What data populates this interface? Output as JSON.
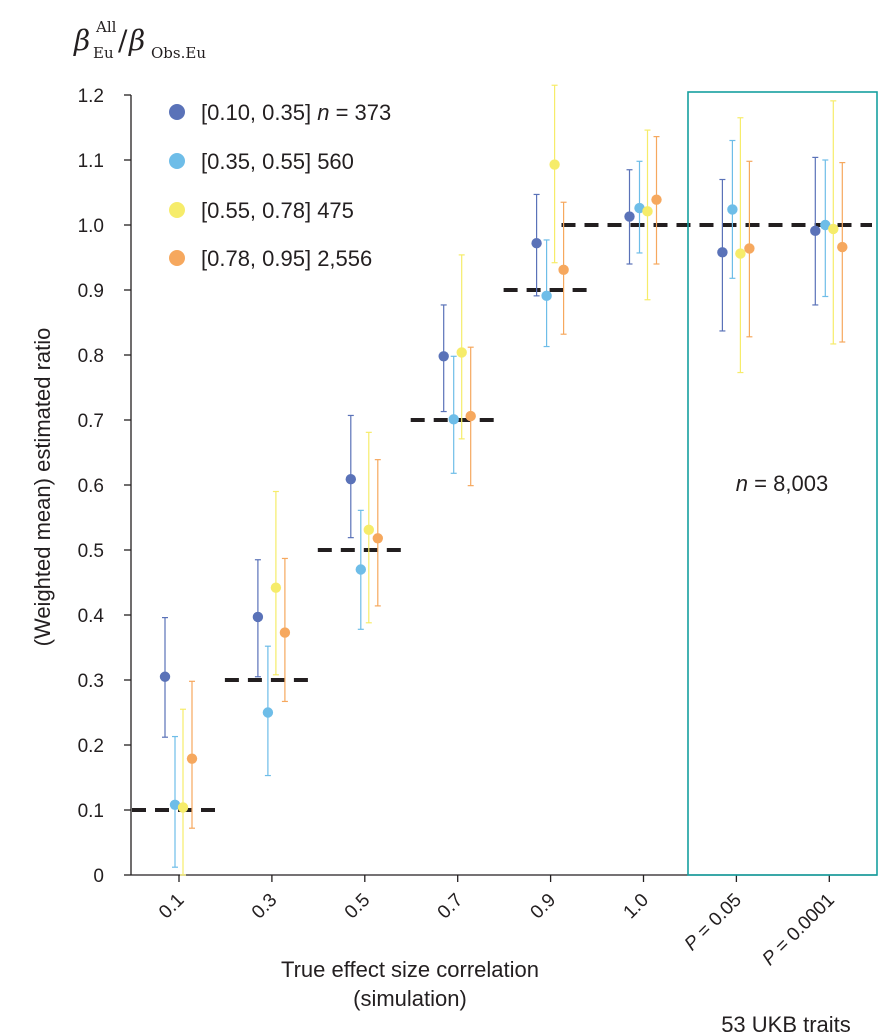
{
  "chart_data": {
    "type": "scatter",
    "subtype": "point-with-error-bars",
    "corner_title": {
      "beta1": "β",
      "sup1": "All",
      "sub1": "Eu",
      "slash": "/",
      "beta2": "β",
      "sub2": "Obs.Eu"
    },
    "ylabel": "(Weighted mean) estimated ratio",
    "xlabel_line1": "True effect size correlation",
    "xlabel_line2": "(simulation)",
    "ylim": [
      0,
      1.2
    ],
    "yticks": [
      "0",
      "0.1",
      "0.2",
      "0.3",
      "0.4",
      "0.5",
      "0.6",
      "0.7",
      "0.8",
      "0.9",
      "1.0",
      "1.1",
      "1.2"
    ],
    "categories": [
      "0.1",
      "0.3",
      "0.5",
      "0.7",
      "0.9",
      "1.0",
      "P = 0.05",
      "P = 0.0001"
    ],
    "true_values": [
      0.1,
      0.3,
      0.5,
      0.7,
      0.9,
      1.0,
      1.0,
      1.0
    ],
    "series": [
      {
        "name": "[0.10, 0.35]",
        "n_italic": "n",
        "n_rest": " = 373",
        "color": "#5a72b8",
        "means": [
          0.305,
          0.397,
          0.609,
          0.798,
          0.972,
          1.013,
          0.958,
          0.991
        ],
        "lower": [
          0.212,
          0.305,
          0.519,
          0.713,
          0.891,
          0.94,
          0.837,
          0.877
        ],
        "upper": [
          0.396,
          0.485,
          0.707,
          0.877,
          1.047,
          1.085,
          1.07,
          1.104
        ]
      },
      {
        "name": "[0.35, 0.55] 560",
        "color": "#6ebde8",
        "means": [
          0.108,
          0.25,
          0.47,
          0.701,
          0.891,
          1.026,
          1.024,
          1.0
        ],
        "lower": [
          0.012,
          0.153,
          0.378,
          0.618,
          0.813,
          0.957,
          0.918,
          0.89
        ],
        "upper": [
          0.213,
          0.352,
          0.561,
          0.798,
          0.977,
          1.098,
          1.13,
          1.1
        ]
      },
      {
        "name": "[0.55, 0.78] 475",
        "color": "#f6ec6a",
        "means": [
          0.104,
          0.442,
          0.531,
          0.804,
          1.093,
          1.021,
          0.956,
          0.994
        ],
        "lower": [
          0.0,
          0.308,
          0.388,
          0.671,
          0.942,
          0.885,
          0.773,
          0.817
        ],
        "upper": [
          0.255,
          0.59,
          0.681,
          0.954,
          1.215,
          1.146,
          1.165,
          1.191
        ]
      },
      {
        "name": "[0.78, 0.95] 2,556",
        "color": "#f6a85e",
        "means": [
          0.179,
          0.373,
          0.518,
          0.706,
          0.931,
          1.039,
          0.964,
          0.966
        ],
        "lower": [
          0.072,
          0.267,
          0.414,
          0.599,
          0.832,
          0.94,
          0.828,
          0.82
        ],
        "upper": [
          0.298,
          0.487,
          0.639,
          0.812,
          1.035,
          1.136,
          1.098,
          1.096
        ]
      }
    ],
    "highlight_box": {
      "color": "#17a0a0",
      "annotation_italic": "n",
      "annotation_rest": " = 8,003",
      "caption": "53 UKB traits"
    }
  }
}
